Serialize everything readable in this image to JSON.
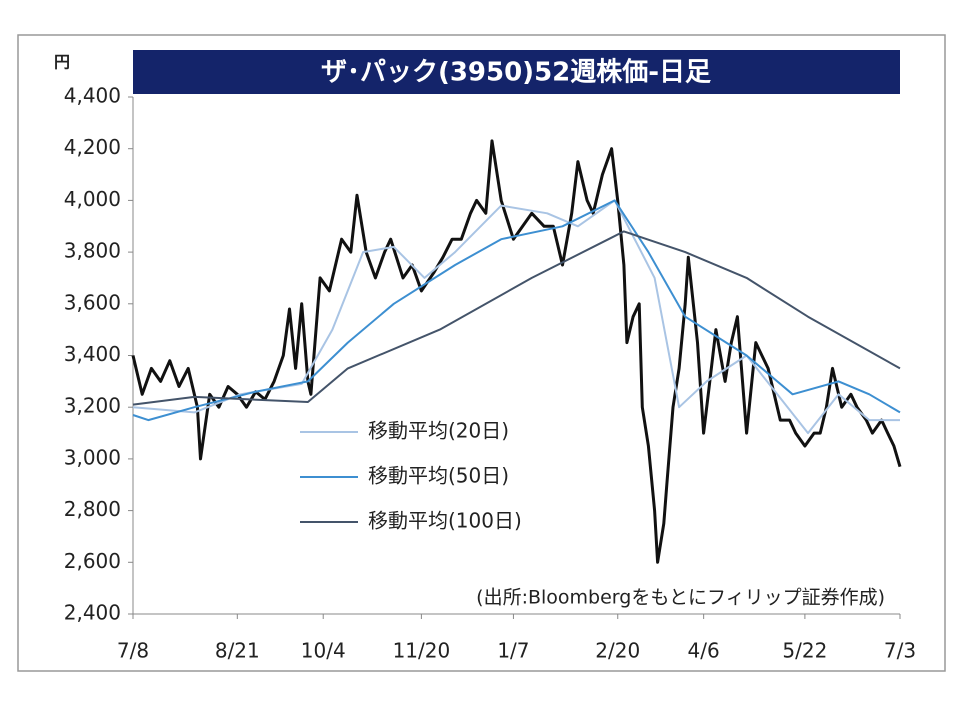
{
  "chart_data": {
    "type": "line",
    "title": "ザ･パック(3950)52週株価-日足",
    "y_unit": "円",
    "annotation": "(出所:Bloombergをもとにフィリップ証券作成)",
    "xlim": [
      0,
      250
    ],
    "xticks": [
      {
        "value": 0,
        "label": "7/8"
      },
      {
        "value": 34,
        "label": "8/21"
      },
      {
        "value": 62,
        "label": "10/4"
      },
      {
        "value": 94,
        "label": "11/20"
      },
      {
        "value": 124,
        "label": "1/7"
      },
      {
        "value": 158,
        "label": "2/20"
      },
      {
        "value": 186,
        "label": "4/6"
      },
      {
        "value": 219,
        "label": "5/22"
      },
      {
        "value": 250,
        "label": "7/3"
      }
    ],
    "ylim": [
      2400,
      4400
    ],
    "yticks": [
      {
        "value": 2400,
        "label": "2,400"
      },
      {
        "value": 2600,
        "label": "2,600"
      },
      {
        "value": 2800,
        "label": "2,800"
      },
      {
        "value": 3000,
        "label": "3,000"
      },
      {
        "value": 3200,
        "label": "3,200"
      },
      {
        "value": 3400,
        "label": "3,400"
      },
      {
        "value": 3600,
        "label": "3,600"
      },
      {
        "value": 3800,
        "label": "3,800"
      },
      {
        "value": 4000,
        "label": "4,000"
      },
      {
        "value": 4200,
        "label": "4,200"
      },
      {
        "value": 4400,
        "label": "4,400"
      }
    ],
    "grid": false,
    "series": [
      {
        "color": "#111111",
        "x": [
          0,
          3,
          6,
          9,
          12,
          15,
          18,
          21,
          22,
          25,
          28,
          31,
          34,
          37,
          40,
          43,
          46,
          49,
          51,
          53,
          55,
          57,
          58,
          61,
          64,
          68,
          71,
          73,
          76,
          79,
          82,
          84,
          88,
          91,
          94,
          98,
          101,
          104,
          107,
          110,
          112,
          115,
          117,
          120,
          124,
          127,
          130,
          134,
          137,
          140,
          143,
          145,
          148,
          150,
          153,
          156,
          158,
          160,
          161,
          163,
          165,
          166,
          168,
          170,
          171,
          173,
          174,
          176,
          178,
          180,
          181,
          184,
          186,
          188,
          190,
          193,
          195,
          197,
          200,
          203,
          205,
          207,
          211,
          214,
          216,
          219,
          222,
          224,
          226,
          228,
          231,
          234,
          236,
          239,
          241,
          244,
          246,
          248,
          250
        ],
        "values": [
          3400,
          3250,
          3350,
          3300,
          3380,
          3280,
          3350,
          3200,
          3000,
          3250,
          3200,
          3280,
          3250,
          3200,
          3260,
          3230,
          3300,
          3400,
          3580,
          3350,
          3600,
          3300,
          3250,
          3700,
          3650,
          3850,
          3800,
          4020,
          3800,
          3700,
          3800,
          3850,
          3700,
          3750,
          3650,
          3720,
          3780,
          3850,
          3850,
          3950,
          4000,
          3950,
          4230,
          4000,
          3850,
          3900,
          3950,
          3900,
          3900,
          3750,
          3950,
          4150,
          4000,
          3950,
          4100,
          4200,
          4000,
          3750,
          3450,
          3550,
          3600,
          3200,
          3050,
          2800,
          2600,
          2750,
          2900,
          3200,
          3350,
          3600,
          3780,
          3450,
          3100,
          3300,
          3500,
          3300,
          3450,
          3550,
          3100,
          3450,
          3400,
          3350,
          3150,
          3150,
          3100,
          3050,
          3100,
          3100,
          3200,
          3350,
          3200,
          3250,
          3200,
          3150,
          3100,
          3150,
          3100,
          3050,
          2970
        ]
      },
      {
        "name": "移動平均(20日)",
        "color": "#a9c4e4",
        "x": [
          0,
          20,
          35,
          55,
          65,
          75,
          85,
          95,
          105,
          120,
          135,
          145,
          157,
          170,
          178,
          187,
          200,
          210,
          220,
          230,
          240,
          250
        ],
        "values": [
          3200,
          3180,
          3250,
          3290,
          3500,
          3800,
          3820,
          3700,
          3800,
          3980,
          3950,
          3900,
          4000,
          3700,
          3200,
          3300,
          3400,
          3250,
          3100,
          3250,
          3150,
          3150
        ]
      },
      {
        "name": "移動平均(50日)",
        "color": "#3d8fd1",
        "x": [
          0,
          5,
          20,
          40,
          57,
          70,
          85,
          105,
          120,
          140,
          157,
          168,
          180,
          200,
          215,
          230,
          240,
          250
        ],
        "values": [
          3170,
          3150,
          3200,
          3260,
          3300,
          3450,
          3600,
          3750,
          3850,
          3900,
          4000,
          3800,
          3550,
          3400,
          3250,
          3300,
          3250,
          3180
        ]
      },
      {
        "name": "移動平均(100日)",
        "color": "#44546a",
        "x": [
          0,
          20,
          57,
          70,
          100,
          130,
          155,
          160,
          180,
          200,
          220,
          250
        ],
        "values": [
          3210,
          3240,
          3220,
          3350,
          3500,
          3700,
          3850,
          3880,
          3800,
          3700,
          3550,
          3350
        ]
      }
    ]
  }
}
